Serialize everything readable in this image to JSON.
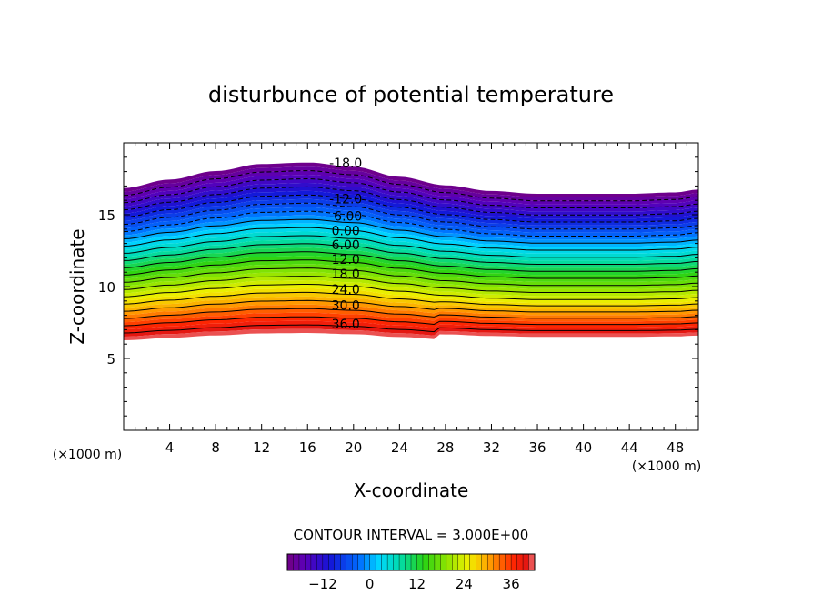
{
  "chart_data": {
    "type": "contour",
    "title": "disturbunce of potential temperature",
    "xlabel": "X-coordinate",
    "ylabel": "Z-coordinate",
    "x_unit": "(×1000 m)",
    "x_unit_right": "(×1000 m)",
    "xlim": [
      0,
      50
    ],
    "ylim": [
      0,
      20
    ],
    "x_ticks": [
      "4",
      "8",
      "12",
      "16",
      "20",
      "24",
      "28",
      "32",
      "36",
      "40",
      "44",
      "48"
    ],
    "y_ticks": [
      "5",
      "10",
      "15"
    ],
    "contour_interval_text": "CONTOUR INTERVAL = 3.000E+00",
    "contour_interval": 3,
    "field_range": [
      -21,
      42
    ],
    "top_profile": [
      [
        0,
        17.6
      ],
      [
        4,
        18.2
      ],
      [
        8,
        18.8
      ],
      [
        12,
        19.3
      ],
      [
        16,
        19.4
      ],
      [
        20,
        19.1
      ],
      [
        24,
        18.4
      ],
      [
        28,
        17.8
      ],
      [
        32,
        17.4
      ],
      [
        36,
        17.2
      ],
      [
        40,
        17.2
      ],
      [
        44,
        17.2
      ],
      [
        48,
        17.3
      ],
      [
        50,
        17.5
      ]
    ],
    "labeled_contours": [
      {
        "label": "-18.0",
        "value": -18,
        "z_at_x16": 18.6
      },
      {
        "label": "-12.0",
        "value": -12,
        "z_at_x16": 16.1
      },
      {
        "label": "-6.00",
        "value": -6,
        "z_at_x16": 14.9
      },
      {
        "label": "0.00",
        "value": 0,
        "z_at_x16": 13.9
      },
      {
        "label": "6.00",
        "value": 6,
        "z_at_x16": 12.9
      },
      {
        "label": "12.0",
        "value": 12,
        "z_at_x16": 11.9
      },
      {
        "label": "18.0",
        "value": 18,
        "z_at_x16": 10.9
      },
      {
        "label": "24.0",
        "value": 24,
        "z_at_x16": 9.8
      },
      {
        "label": "30.0",
        "value": 30,
        "z_at_x16": 8.7
      },
      {
        "label": "36.0",
        "value": 36,
        "z_at_x16": 7.4
      }
    ],
    "colorbar": {
      "range": [
        -21,
        42
      ],
      "ticks": [
        -12,
        0,
        12,
        24,
        36
      ],
      "tick_labels": [
        "−12",
        "0",
        "12",
        "24",
        "36"
      ]
    }
  }
}
